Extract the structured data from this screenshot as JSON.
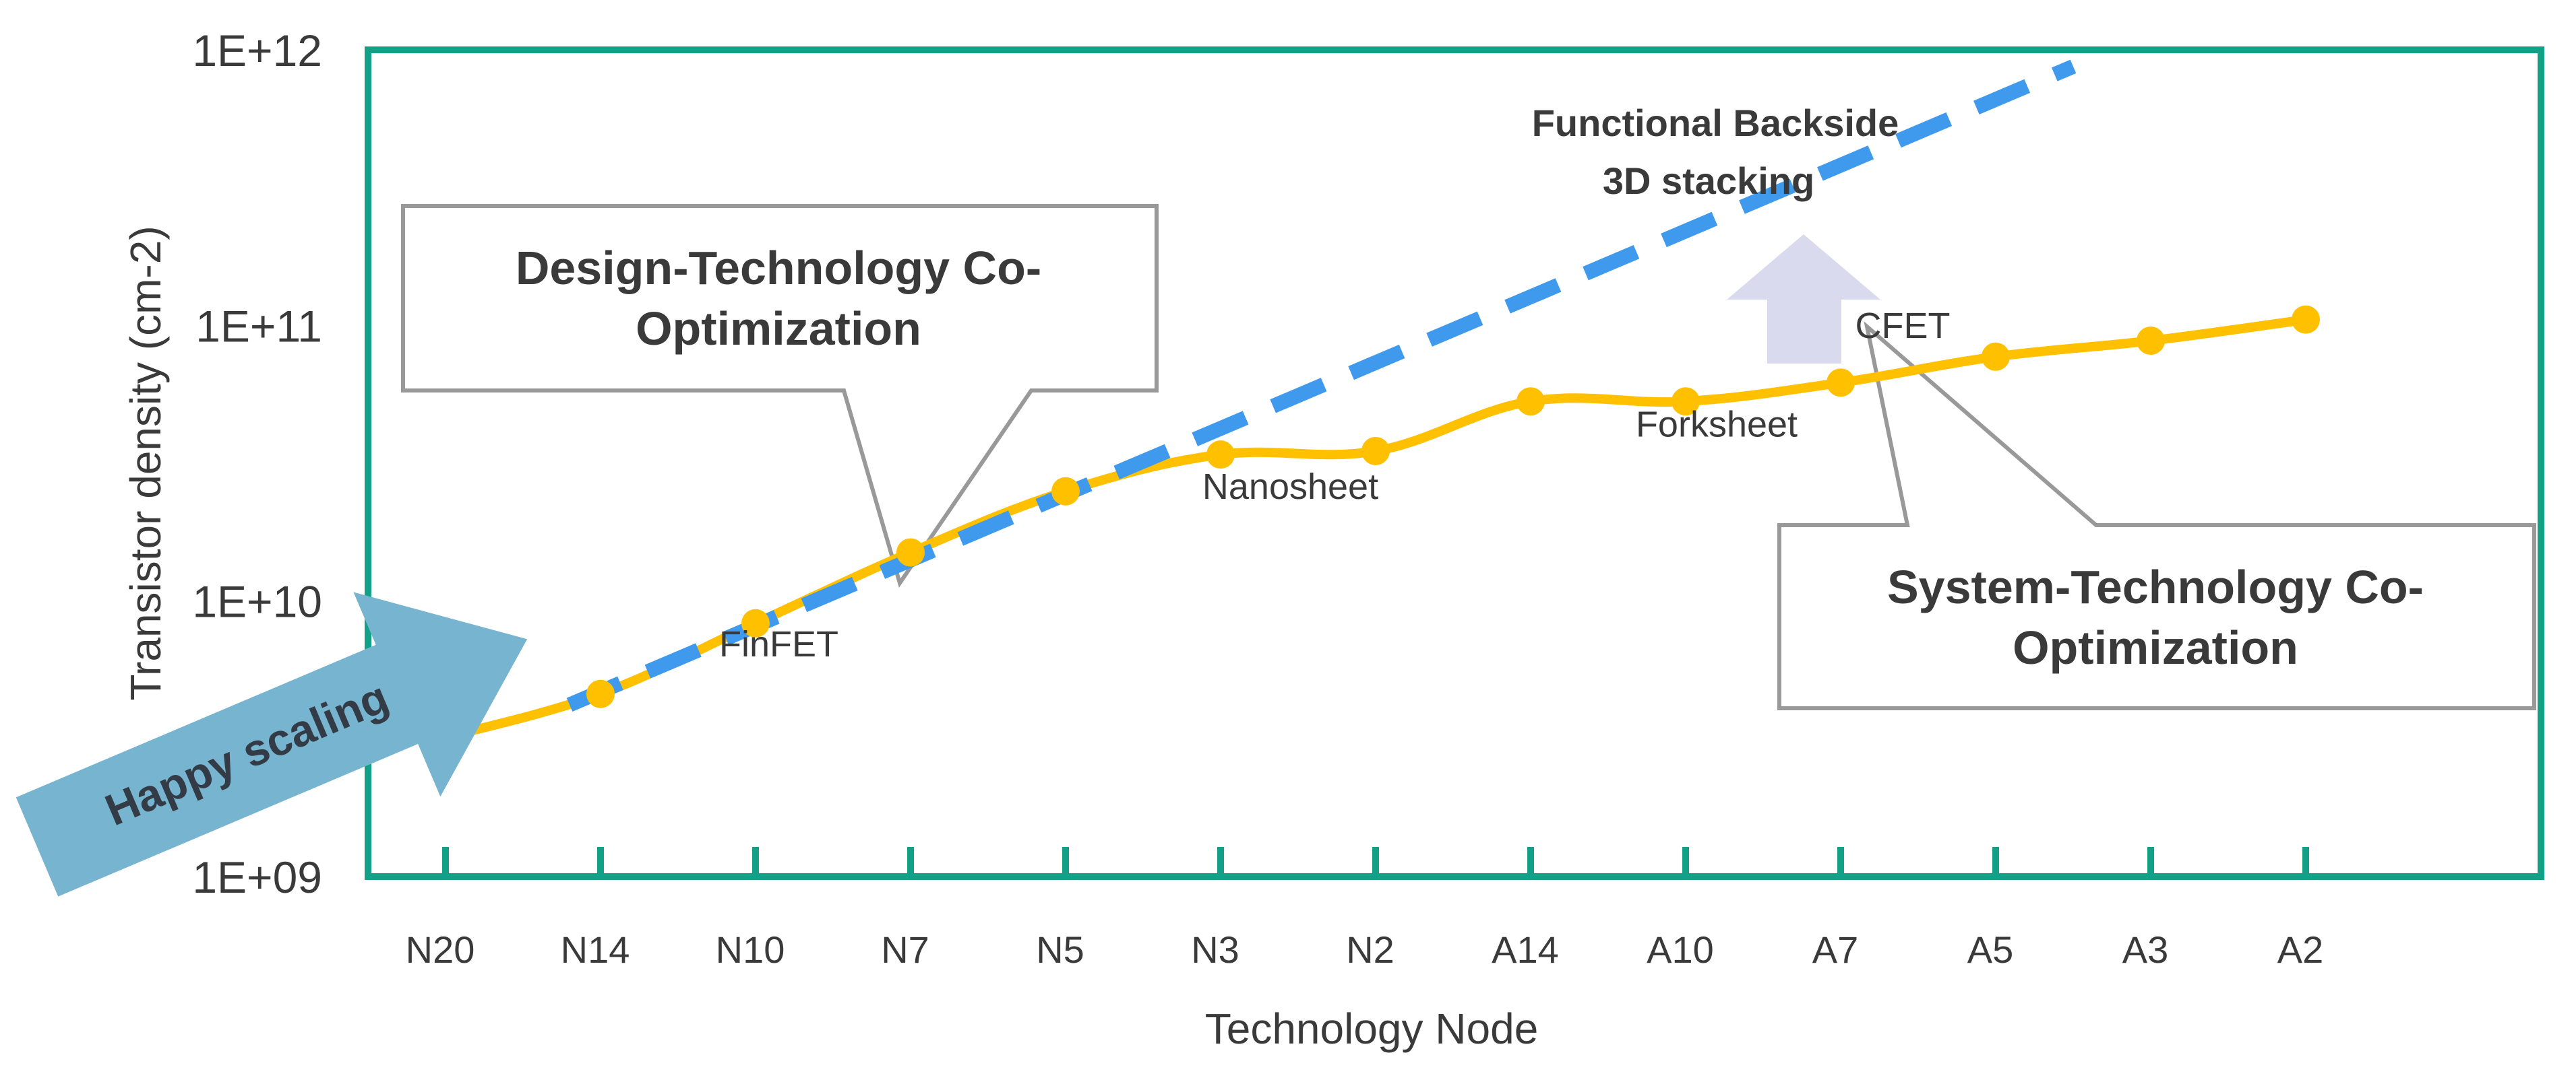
{
  "chart_data": {
    "type": "line",
    "xlabel": "Technology Node",
    "ylabel": "Transistor density (cm-2)",
    "y_scale": "log",
    "ylim": [
      1000000000.0,
      1000000000000.0
    ],
    "y_ticks": [
      {
        "value": 1000000000.0,
        "label": "1E+09"
      },
      {
        "value": 10000000000.0,
        "label": "1E+10"
      },
      {
        "value": 100000000000.0,
        "label": "1E+11"
      },
      {
        "value": 1000000000000.0,
        "label": "1E+12"
      }
    ],
    "categories": [
      "N20",
      "N14",
      "N10",
      "N7",
      "N5",
      "N3",
      "N2",
      "A14",
      "A10",
      "A7",
      "A5",
      "A3",
      "A2"
    ],
    "series": [
      {
        "color": "#FFC000",
        "points": [
          {
            "x": 0.5,
            "y": 3200000000.0
          },
          {
            "x": 1.5,
            "y": 4600000000.0
          },
          {
            "x": 2.5,
            "y": 8300000000.0
          },
          {
            "x": 3.5,
            "y": 15000000000.0
          },
          {
            "x": 4.5,
            "y": 25000000000.0
          },
          {
            "x": 5.5,
            "y": 34000000000.0
          },
          {
            "x": 6.5,
            "y": 35000000000.0
          },
          {
            "x": 7.5,
            "y": 53000000000.0
          },
          {
            "x": 8.5,
            "y": 53000000000.0
          },
          {
            "x": 9.5,
            "y": 62000000000.0
          },
          {
            "x": 10.5,
            "y": 77000000000.0
          },
          {
            "x": 11.5,
            "y": 88000000000.0
          },
          {
            "x": 12.5,
            "y": 105000000000.0
          }
        ]
      },
      {
        "color": "#3F9AEE",
        "dashed": true,
        "points": [
          {
            "x": 1.3,
            "y": 4200000000.0
          },
          {
            "x": 11.0,
            "y": 870000000000.0
          }
        ]
      }
    ],
    "stage_labels": [
      {
        "text": "FinFET",
        "x": 2.65,
        "y": 6300000000.0
      },
      {
        "text": "Nanosheet",
        "x": 5.95,
        "y": 23500000000.0
      },
      {
        "text": "Forksheet",
        "x": 8.7,
        "y": 39500000000.0
      },
      {
        "text": "CFET",
        "x": 9.9,
        "y": 90000000000.0
      }
    ],
    "annotations": {
      "dtco": [
        "Design-Technology Co-",
        "Optimization"
      ],
      "stco": [
        "System-Technology Co-",
        "Optimization"
      ],
      "trend": [
        "Functional Backside",
        "3D stacking"
      ],
      "happy": "Happy scaling"
    },
    "colors": {
      "frame": "#12A086",
      "solid_line": "#FFC000",
      "dashed_line": "#3F9AEE",
      "up_arrow": "#DADAEF",
      "happy_arrow": "#77B4CF",
      "callout_border": "#999999"
    }
  }
}
